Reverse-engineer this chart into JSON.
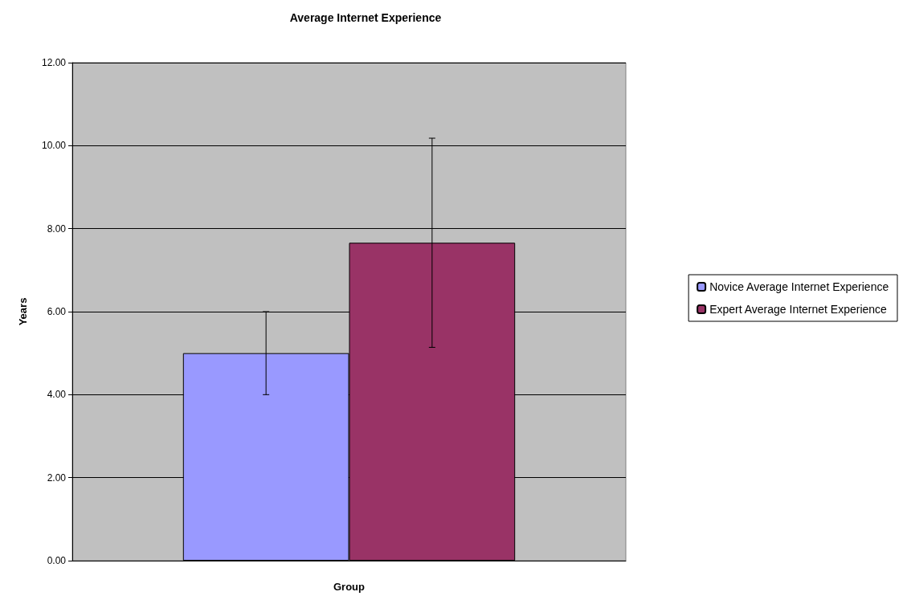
{
  "chart_data": {
    "type": "bar",
    "title": "Average Internet Experience",
    "xlabel": "Group",
    "ylabel": "Years",
    "categories": [
      null
    ],
    "series": [
      {
        "name": "Novice Average Internet Experience",
        "color": "#9999ff",
        "values": [
          5.0
        ],
        "errors": [
          1.0
        ]
      },
      {
        "name": "Expert Average Internet Experience",
        "color": "#993366",
        "values": [
          7.66
        ],
        "errors": [
          2.52
        ]
      }
    ],
    "ylim": [
      0,
      12
    ],
    "yticks": [
      {
        "value": 0,
        "label": "0.00"
      },
      {
        "value": 2,
        "label": "2.00"
      },
      {
        "value": 4,
        "label": "4.00"
      },
      {
        "value": 6,
        "label": "6.00"
      },
      {
        "value": 8,
        "label": "8.00"
      },
      {
        "value": 10,
        "label": "10.00"
      },
      {
        "value": 12,
        "label": "12.00"
      }
    ],
    "grid": "y",
    "legend": "right"
  }
}
